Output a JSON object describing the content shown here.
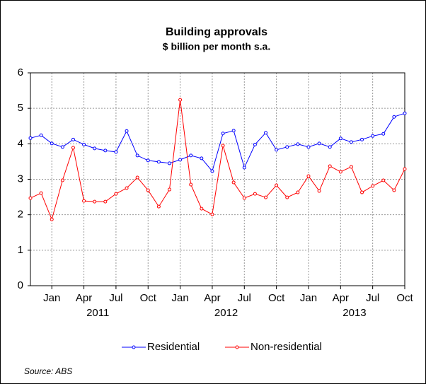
{
  "chart_data": {
    "type": "line",
    "title": "Building approvals",
    "subtitle": "$ billion per month s.a.",
    "source": "Source: ABS",
    "categories": [
      null,
      null,
      "Jan",
      null,
      null,
      "Apr",
      null,
      null,
      "Jul",
      null,
      null,
      "Oct",
      null,
      null,
      "Jan",
      null,
      null,
      "Apr",
      null,
      null,
      "Jul",
      null,
      null,
      "Oct",
      null,
      null,
      "Jan",
      null,
      null,
      "Apr",
      null,
      null,
      "Jul",
      null,
      null,
      "Oct"
    ],
    "years": [
      "2011",
      "2012",
      "2013"
    ],
    "series": [
      {
        "name": "Residential",
        "color": "#0000ff",
        "values": [
          4.16,
          4.24,
          4.01,
          3.91,
          4.12,
          3.98,
          3.87,
          3.81,
          3.77,
          4.36,
          3.67,
          3.53,
          3.49,
          3.45,
          3.55,
          3.67,
          3.59,
          3.23,
          4.29,
          4.37,
          3.33,
          3.98,
          4.31,
          3.83,
          3.91,
          3.99,
          3.91,
          4.01,
          3.91,
          4.15,
          4.05,
          4.12,
          4.22,
          4.28,
          4.76,
          4.86
        ]
      },
      {
        "name": "Non-residential",
        "color": "#ff0000",
        "values": [
          2.47,
          2.61,
          1.87,
          2.97,
          3.89,
          2.39,
          2.37,
          2.37,
          2.59,
          2.75,
          3.05,
          2.69,
          2.23,
          2.71,
          5.24,
          2.85,
          2.17,
          2.01,
          3.95,
          2.91,
          2.47,
          2.59,
          2.49,
          2.83,
          2.49,
          2.63,
          3.09,
          2.67,
          3.37,
          3.21,
          3.35,
          2.63,
          2.81,
          2.97,
          2.69,
          3.29
        ]
      }
    ],
    "ylim": [
      0,
      6
    ],
    "yticks": [
      0,
      1,
      2,
      3,
      4,
      5,
      6
    ],
    "grid": true,
    "legend": "bottom"
  }
}
